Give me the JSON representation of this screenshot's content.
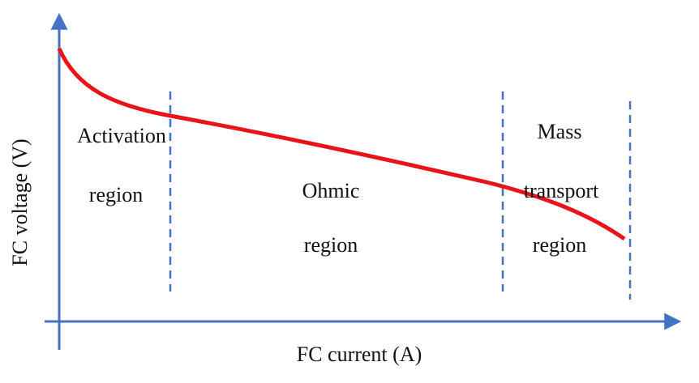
{
  "axes": {
    "x_label": "FC current (A)",
    "y_label": "FC voltage (V)"
  },
  "regions": [
    {
      "lines": [
        "Activation",
        "region"
      ]
    },
    {
      "lines": [
        "Ohmic",
        "region"
      ]
    },
    {
      "lines": [
        "Mass",
        "transport",
        "region"
      ]
    }
  ]
}
